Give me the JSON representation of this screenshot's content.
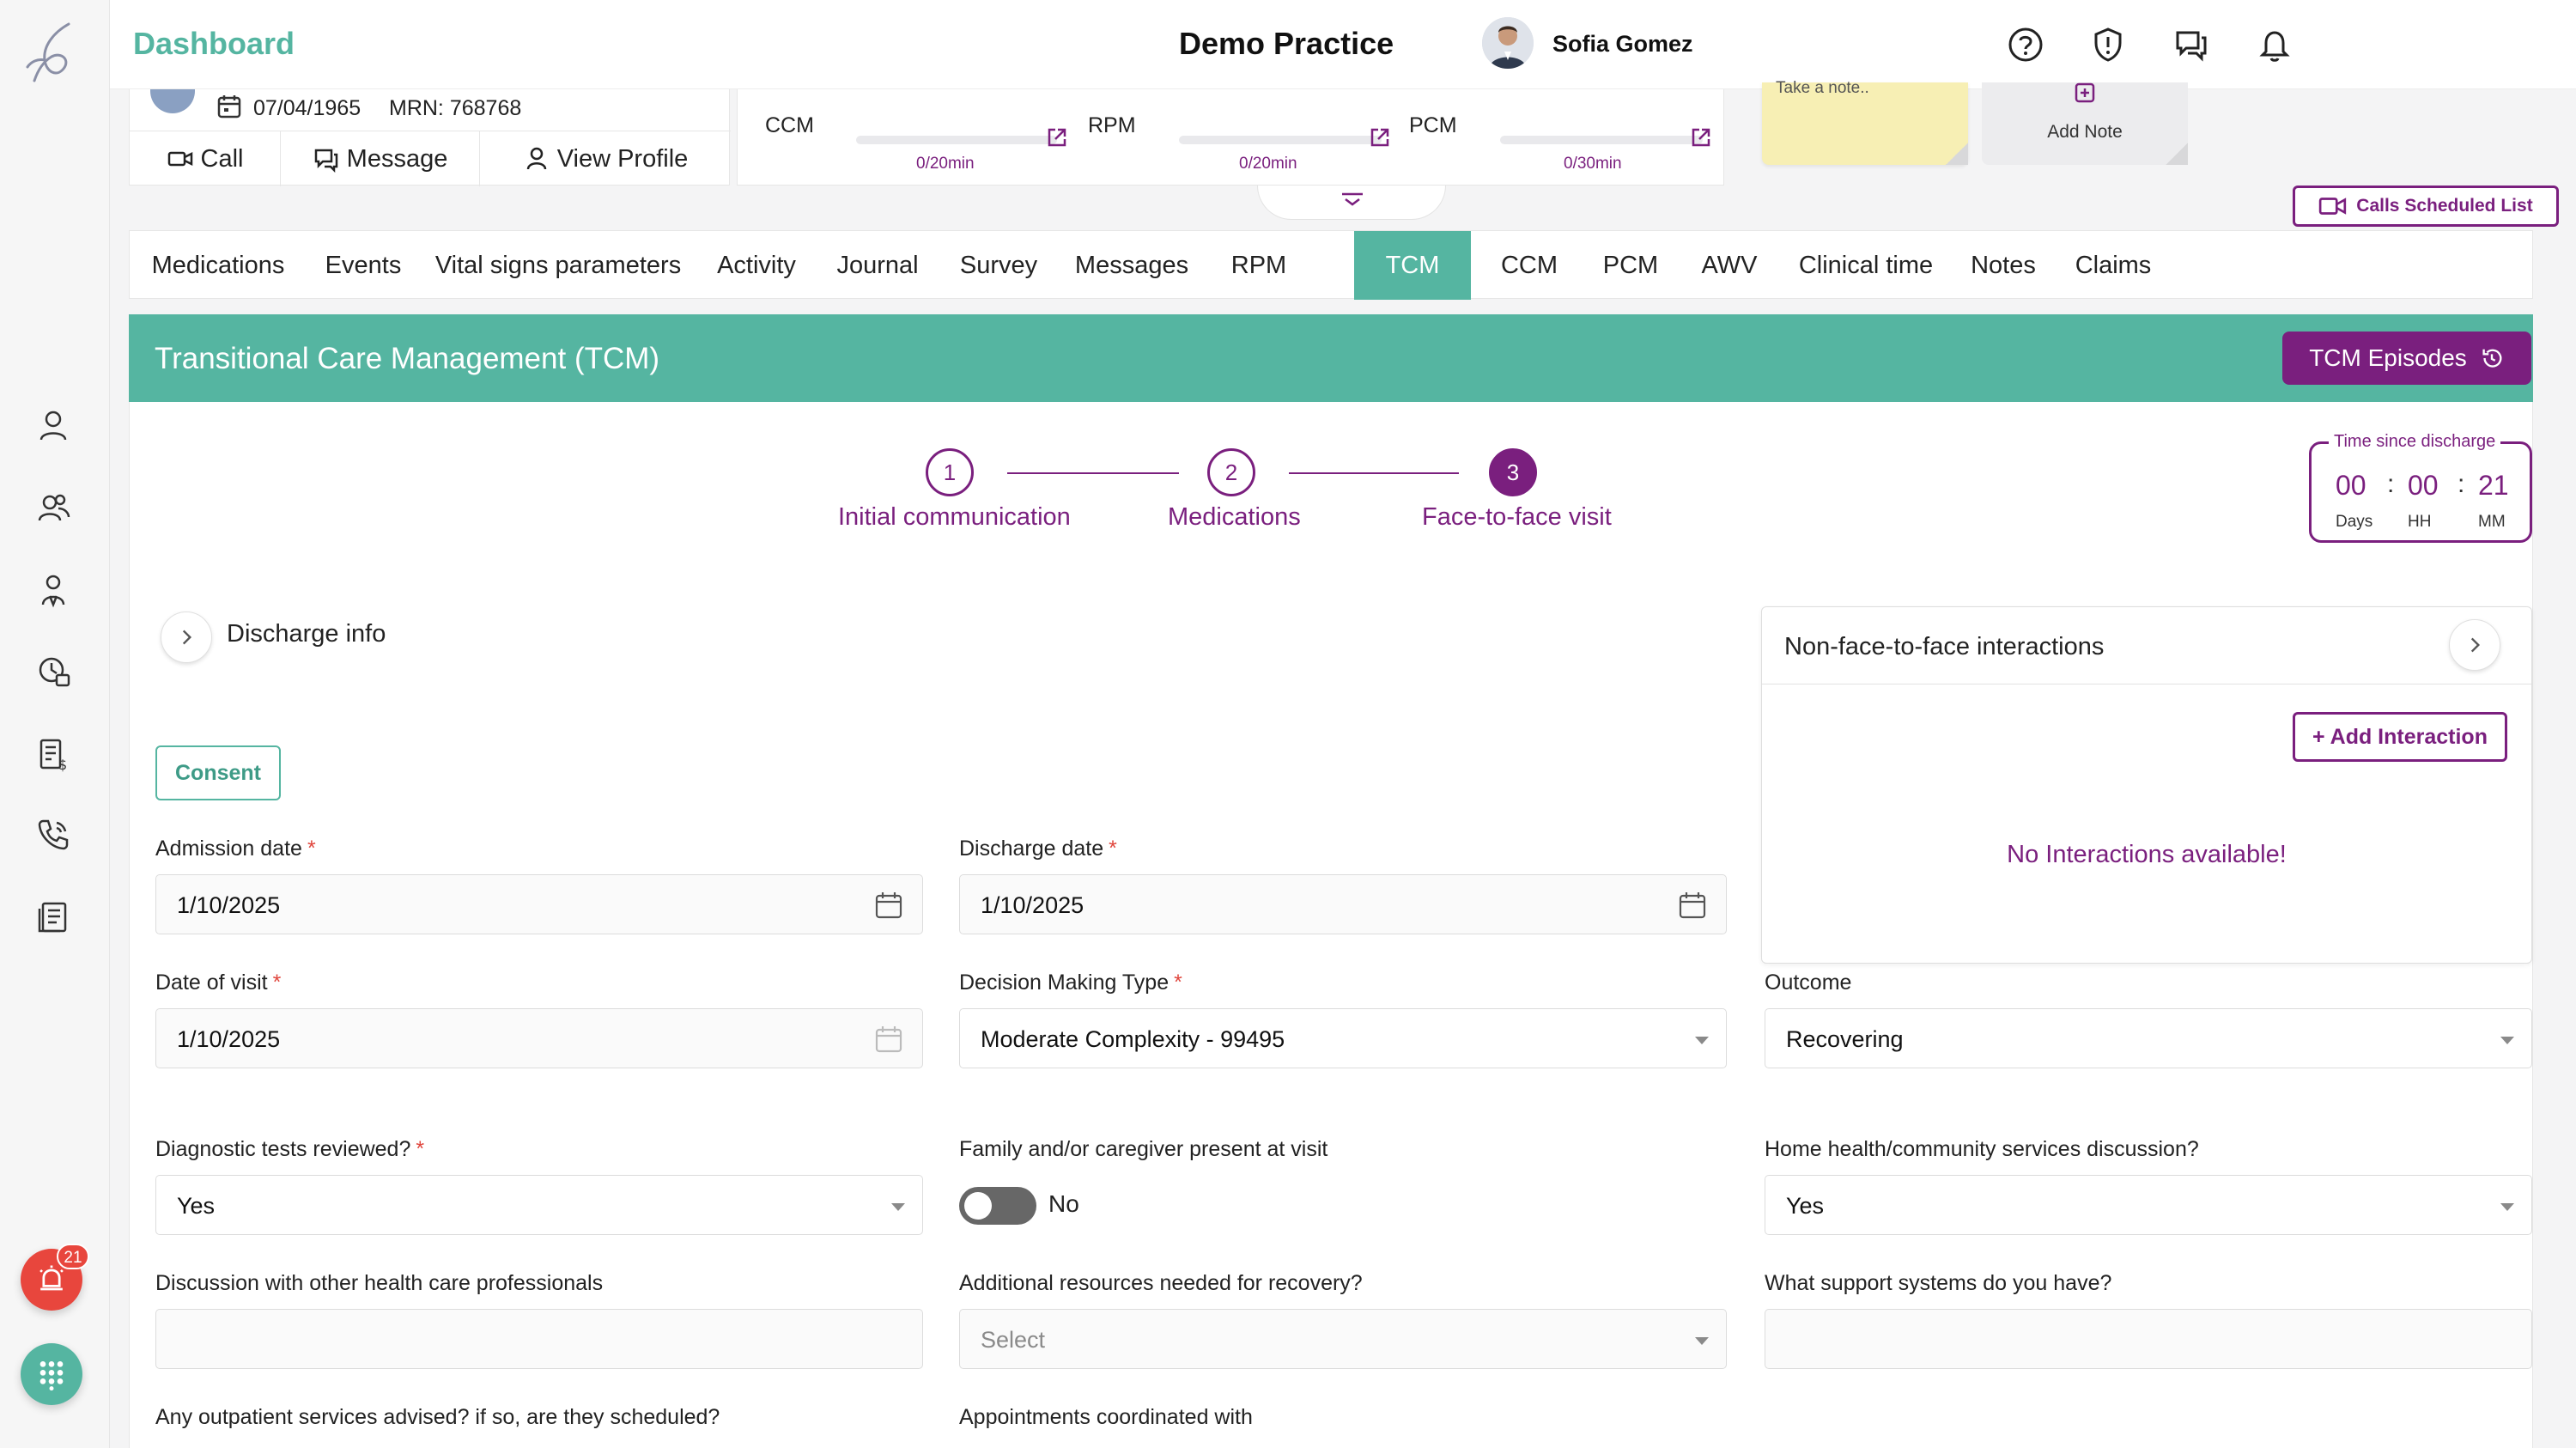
{
  "header": {
    "title": "Dashboard",
    "practice": "Demo Practice",
    "user": "Sofia Gomez"
  },
  "patient": {
    "dob": "07/04/1965",
    "mrn": "MRN: 768768",
    "actions": [
      "Call",
      "Message",
      "View Profile"
    ]
  },
  "programs": [
    {
      "label": "CCM",
      "value": "0/20min",
      "progress": 0
    },
    {
      "label": "RPM",
      "value": "0/20min",
      "progress": 0
    },
    {
      "label": "PCM",
      "value": "0/30min",
      "progress": 0
    }
  ],
  "notes": {
    "sticky_text": "Take a note..",
    "add_note": "Add Note"
  },
  "calls_scheduled": "Calls Scheduled List",
  "tabs": [
    "Medications",
    "Events",
    "Vital signs parameters",
    "Activity",
    "Journal",
    "Survey",
    "Messages",
    "RPM",
    "TCM",
    "CCM",
    "PCM",
    "AWV",
    "Clinical time",
    "Notes",
    "Claims"
  ],
  "active_tab": "TCM",
  "banner": {
    "title": "Transitional Care Management (TCM)",
    "episodes": "TCM Episodes"
  },
  "steps": [
    {
      "num": "1",
      "label": "Initial communication"
    },
    {
      "num": "2",
      "label": "Medications"
    },
    {
      "num": "3",
      "label": "Face-to-face visit"
    }
  ],
  "time_since_discharge": {
    "title": "Time since discharge",
    "days": "00",
    "hours": "00",
    "minutes": "21",
    "days_label": "Days",
    "hours_label": "HH",
    "minutes_label": "MM"
  },
  "discharge_info": "Discharge info",
  "consent": "Consent",
  "form": {
    "admission_date": {
      "label": "Admission date",
      "value": "1/10/2025"
    },
    "discharge_date": {
      "label": "Discharge date",
      "value": "1/10/2025"
    },
    "date_of_visit": {
      "label": "Date of visit",
      "value": "1/10/2025"
    },
    "decision_making": {
      "label": "Decision Making Type",
      "value": "Moderate Complexity - 99495"
    },
    "outcome": {
      "label": "Outcome",
      "value": "Recovering"
    },
    "diagnostic_tests": {
      "label": "Diagnostic tests reviewed?",
      "value": "Yes"
    },
    "family_present": {
      "label": "Family and/or caregiver present at visit",
      "value": "No"
    },
    "home_health": {
      "label": "Home health/community services discussion?",
      "value": "Yes"
    },
    "discussion_professionals": {
      "label": "Discussion with other health care professionals",
      "value": ""
    },
    "additional_resources": {
      "label": "Additional resources needed for recovery?",
      "placeholder": "Select"
    },
    "support_systems": {
      "label": "What support systems do you have?",
      "value": ""
    },
    "outpatient": {
      "label": "Any outpatient services advised? if so, are they scheduled?"
    },
    "appointments": {
      "label": "Appointments coordinated with"
    }
  },
  "interactions": {
    "title": "Non-face-to-face interactions",
    "add": "+ Add Interaction",
    "empty": "No Interactions available!"
  },
  "alerts_count": "21",
  "colors": {
    "teal": "#55b5a1",
    "purple": "#7a1f7e"
  }
}
